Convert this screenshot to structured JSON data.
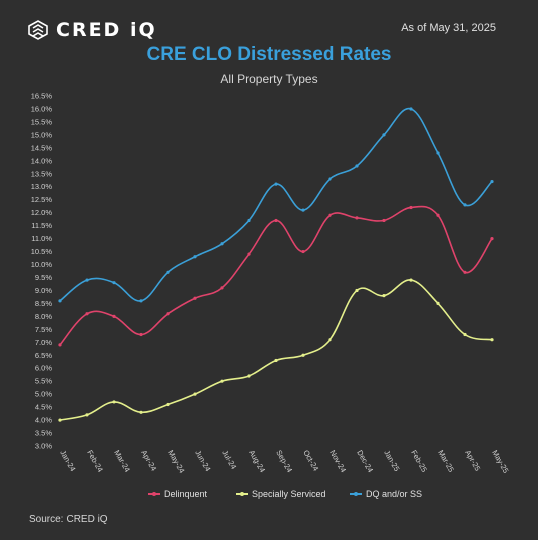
{
  "header": {
    "logo_text": "CRED iQ",
    "as_of": "As of May 31, 2025"
  },
  "footer": {
    "source_label": "Source:",
    "source_value": "CRED iQ"
  },
  "colors": {
    "delinquent": "#e0436b",
    "specially_serviced": "#e4ef8c",
    "dq_and_or_ss": "#3ba0d8",
    "title": "#3aa0dc"
  },
  "chart_data": {
    "type": "line",
    "title": "CRE CLO Distressed Rates",
    "subtitle": "All Property Types",
    "xlabel": "",
    "ylabel": "",
    "ylim": [
      3.0,
      16.5
    ],
    "y_ticks": [
      "3.0%",
      "3.5%",
      "4.0%",
      "4.5%",
      "5.0%",
      "5.5%",
      "6.0%",
      "6.5%",
      "7.0%",
      "7.5%",
      "8.0%",
      "8.5%",
      "9.0%",
      "9.5%",
      "10.0%",
      "10.5%",
      "11.0%",
      "11.5%",
      "12.0%",
      "12.5%",
      "13.0%",
      "13.5%",
      "14.0%",
      "14.5%",
      "15.0%",
      "15.5%",
      "16.0%",
      "16.5%"
    ],
    "grid": false,
    "legend_position": "bottom",
    "categories": [
      "Jan-24",
      "Feb-24",
      "Mar-24",
      "Apr-24",
      "May-24",
      "Jun-24",
      "Jul-24",
      "Aug-24",
      "Sep-24",
      "Oct-24",
      "Nov-24",
      "Dec-24",
      "Jan-25",
      "Feb-25",
      "Mar-25",
      "Apr-25",
      "May-25"
    ],
    "series": [
      {
        "name": "Delinquent",
        "color": "#e0436b",
        "values": [
          6.9,
          8.1,
          8.0,
          7.3,
          8.1,
          8.7,
          9.1,
          10.4,
          11.7,
          10.5,
          11.9,
          11.8,
          11.7,
          12.2,
          11.9,
          9.7,
          11.0
        ]
      },
      {
        "name": "Specially Serviced",
        "color": "#e4ef8c",
        "values": [
          4.0,
          4.2,
          4.7,
          4.3,
          4.6,
          5.0,
          5.5,
          5.7,
          6.3,
          6.5,
          7.1,
          9.0,
          8.8,
          9.4,
          8.5,
          7.3,
          7.1
        ]
      },
      {
        "name": "DQ and/or SS",
        "color": "#3ba0d8",
        "values": [
          8.6,
          9.4,
          9.3,
          8.6,
          9.7,
          10.3,
          10.8,
          11.7,
          13.1,
          12.1,
          13.3,
          13.8,
          15.0,
          16.0,
          14.3,
          12.3,
          13.2
        ]
      }
    ]
  }
}
